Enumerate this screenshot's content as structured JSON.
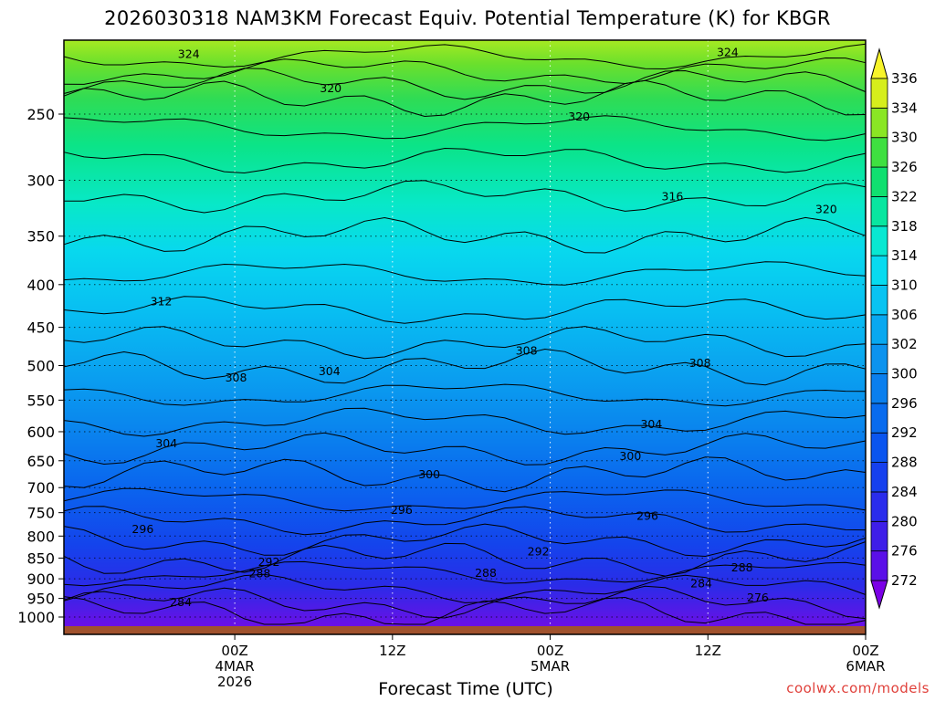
{
  "chart_data": {
    "type": "heatmap",
    "title": "2026030318 NAM3KM Forecast Equiv. Potential Temperature (K) for KBGR",
    "xlabel": "Forecast Time (UTC)",
    "ylabel": "",
    "y_axis": {
      "label": "",
      "scale": "pressure (hPa), inverted, log",
      "ticks": [
        250,
        300,
        350,
        400,
        450,
        500,
        550,
        600,
        650,
        700,
        750,
        800,
        850,
        900,
        950,
        1000
      ],
      "range": [
        1000,
        200
      ]
    },
    "x_axis": {
      "range_hours_from_init": [
        -7,
        54
      ],
      "ticks": [
        {
          "label": "00Z",
          "line2": "4MAR",
          "line3": "2026"
        },
        {
          "label": "12Z",
          "line2": "",
          "line3": ""
        },
        {
          "label": "00Z",
          "line2": "5MAR",
          "line3": ""
        },
        {
          "label": "12Z",
          "line2": "",
          "line3": ""
        },
        {
          "label": "00Z",
          "line2": "6MAR",
          "line3": ""
        }
      ]
    },
    "grid": true,
    "colorbar": {
      "position": "right",
      "levels": [
        272,
        276,
        280,
        284,
        288,
        292,
        296,
        300,
        302,
        306,
        310,
        314,
        318,
        322,
        326,
        330,
        334,
        336
      ],
      "colors": [
        "#7b00e6",
        "#5a10e8",
        "#3e1ee8",
        "#2a2cec",
        "#1640ee",
        "#0a55ef",
        "#086bee",
        "#0a7fee",
        "#0c93ee",
        "#08a8f0",
        "#08c3f2",
        "#07dbf0",
        "#08e8d2",
        "#08e6a0",
        "#10e070",
        "#3fe040",
        "#8ae624",
        "#d6ee1c",
        "#f7f42a"
      ]
    },
    "contour_labels": [
      {
        "value": "324",
        "time_h": 2.5,
        "p_hpa": 212
      },
      {
        "value": "324",
        "time_h": 43.5,
        "p_hpa": 211
      },
      {
        "value": "320",
        "time_h": 13.3,
        "p_hpa": 233
      },
      {
        "value": "320",
        "time_h": 32.2,
        "p_hpa": 252
      },
      {
        "value": "320",
        "time_h": 51,
        "p_hpa": 325
      },
      {
        "value": "316",
        "time_h": 39.3,
        "p_hpa": 314
      },
      {
        "value": "312",
        "time_h": 0.4,
        "p_hpa": 419
      },
      {
        "value": "308",
        "time_h": 28.2,
        "p_hpa": 480
      },
      {
        "value": "308",
        "time_h": 41.4,
        "p_hpa": 497
      },
      {
        "value": "308",
        "time_h": 6.1,
        "p_hpa": 517
      },
      {
        "value": "304",
        "time_h": 13.2,
        "p_hpa": 508
      },
      {
        "value": "304",
        "time_h": 37.7,
        "p_hpa": 588
      },
      {
        "value": "304",
        "time_h": 0.8,
        "p_hpa": 620
      },
      {
        "value": "300",
        "time_h": 36.1,
        "p_hpa": 642
      },
      {
        "value": "300",
        "time_h": 20.8,
        "p_hpa": 675
      },
      {
        "value": "296",
        "time_h": 18.7,
        "p_hpa": 745
      },
      {
        "value": "296",
        "time_h": 37.4,
        "p_hpa": 757
      },
      {
        "value": "296",
        "time_h": -1,
        "p_hpa": 785
      },
      {
        "value": "292",
        "time_h": 8.6,
        "p_hpa": 860
      },
      {
        "value": "292",
        "time_h": 29.1,
        "p_hpa": 835
      },
      {
        "value": "288",
        "time_h": 7.9,
        "p_hpa": 887
      },
      {
        "value": "288",
        "time_h": 25.1,
        "p_hpa": 886
      },
      {
        "value": "288",
        "time_h": 44.6,
        "p_hpa": 873
      },
      {
        "value": "284",
        "time_h": 1.9,
        "p_hpa": 960
      },
      {
        "value": "284",
        "time_h": 41.5,
        "p_hpa": 912
      },
      {
        "value": "276",
        "time_h": 45.8,
        "p_hpa": 948
      }
    ]
  },
  "watermark": "coolwx.com/models"
}
